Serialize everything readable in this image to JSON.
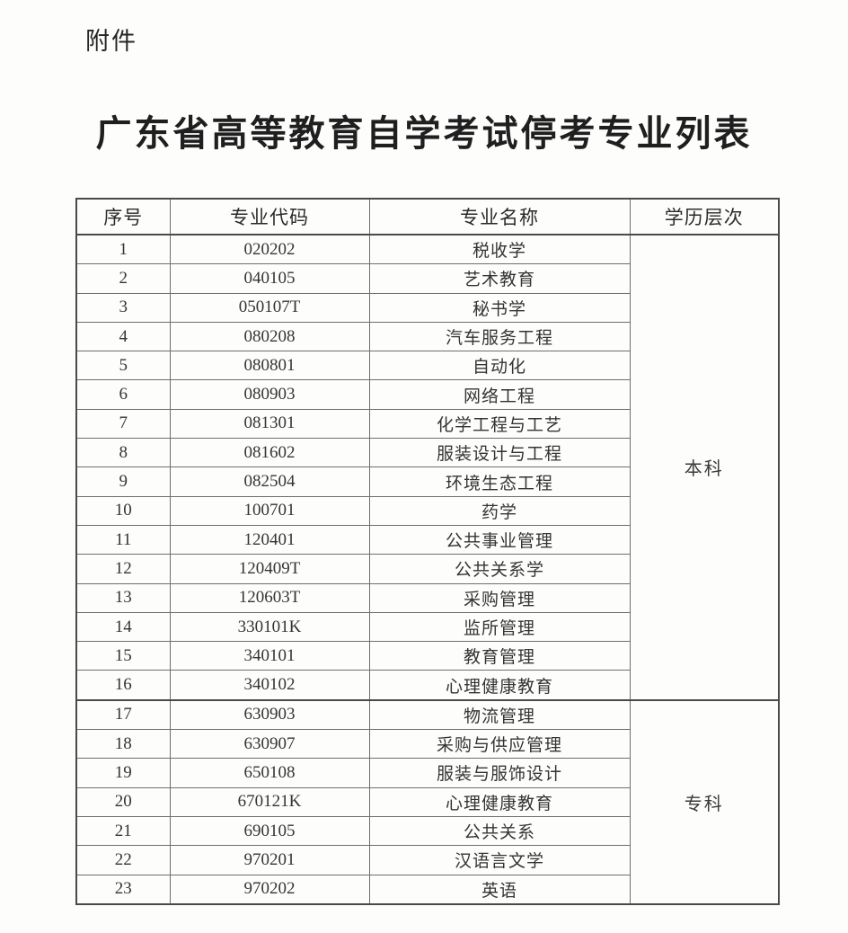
{
  "page": {
    "attachment_label": "附件",
    "title": "广东省高等教育自学考试停考专业列表"
  },
  "table": {
    "headers": [
      "序号",
      "专业代码",
      "专业名称",
      "学历层次"
    ],
    "rows": [
      {
        "no": "1",
        "code": "020202",
        "name": "税收学"
      },
      {
        "no": "2",
        "code": "040105",
        "name": "艺术教育"
      },
      {
        "no": "3",
        "code": "050107T",
        "name": "秘书学"
      },
      {
        "no": "4",
        "code": "080208",
        "name": "汽车服务工程"
      },
      {
        "no": "5",
        "code": "080801",
        "name": "自动化"
      },
      {
        "no": "6",
        "code": "080903",
        "name": "网络工程"
      },
      {
        "no": "7",
        "code": "081301",
        "name": "化学工程与工艺"
      },
      {
        "no": "8",
        "code": "081602",
        "name": "服装设计与工程"
      },
      {
        "no": "9",
        "code": "082504",
        "name": "环境生态工程"
      },
      {
        "no": "10",
        "code": "100701",
        "name": "药学"
      },
      {
        "no": "11",
        "code": "120401",
        "name": "公共事业管理"
      },
      {
        "no": "12",
        "code": "120409T",
        "name": "公共关系学"
      },
      {
        "no": "13",
        "code": "120603T",
        "name": "采购管理"
      },
      {
        "no": "14",
        "code": "330101K",
        "name": "监所管理"
      },
      {
        "no": "15",
        "code": "340101",
        "name": "教育管理"
      },
      {
        "no": "16",
        "code": "340102",
        "name": "心理健康教育"
      },
      {
        "no": "17",
        "code": "630903",
        "name": "物流管理"
      },
      {
        "no": "18",
        "code": "630907",
        "name": "采购与供应管理"
      },
      {
        "no": "19",
        "code": "650108",
        "name": "服装与服饰设计"
      },
      {
        "no": "20",
        "code": "670121K",
        "name": "心理健康教育"
      },
      {
        "no": "21",
        "code": "690105",
        "name": "公共关系"
      },
      {
        "no": "22",
        "code": "970201",
        "name": "汉语言文学"
      },
      {
        "no": "23",
        "code": "970202",
        "name": "英语"
      }
    ],
    "levels": [
      {
        "label": "本科",
        "start": 1,
        "span": 16
      },
      {
        "label": "专科",
        "start": 17,
        "span": 7
      }
    ]
  }
}
